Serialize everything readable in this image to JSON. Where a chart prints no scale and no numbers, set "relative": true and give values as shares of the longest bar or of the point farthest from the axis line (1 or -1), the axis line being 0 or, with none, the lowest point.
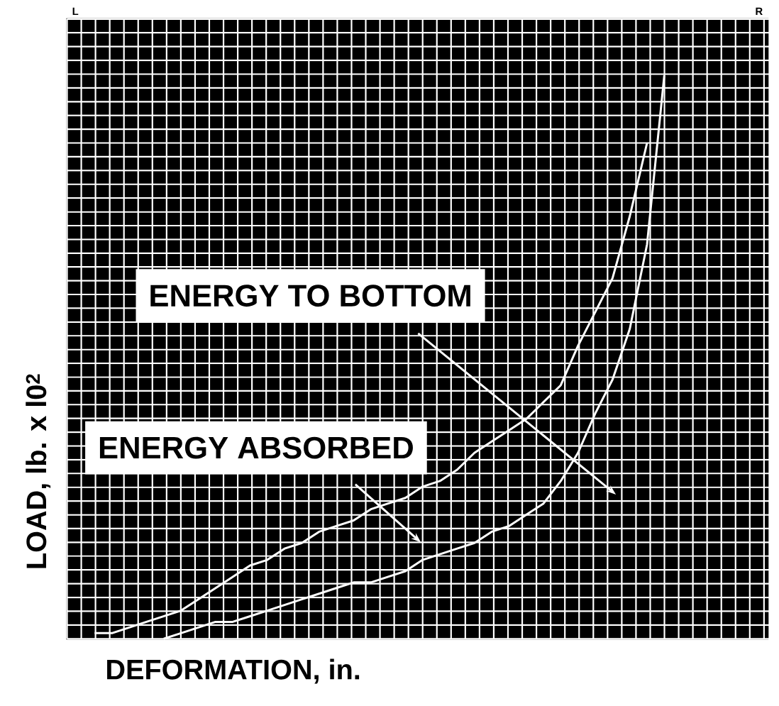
{
  "chart_data": {
    "type": "line",
    "relative": true,
    "xlabel": "DEFORMATION, in.",
    "ylabel": "LOAD, lb. x l0$^{2}$",
    "categories": [
      null,
      null,
      null,
      null,
      null,
      null,
      null,
      null,
      null,
      null,
      null,
      null,
      null,
      null,
      null,
      null,
      null,
      null,
      null,
      null,
      null,
      null,
      null,
      null,
      null,
      null,
      null,
      null,
      null,
      null,
      null,
      null,
      null,
      null,
      null,
      null,
      null,
      null,
      null,
      null,
      null
    ],
    "series": [
      {
        "color": "#ffffff",
        "values": [
          null,
          0.01,
          0.01,
          0.02,
          0.03,
          0.04,
          0.05,
          0.07,
          0.09,
          0.11,
          0.13,
          0.14,
          0.16,
          0.17,
          0.19,
          0.2,
          0.21,
          0.23,
          0.24,
          0.25,
          0.27,
          0.28,
          0.3,
          0.33,
          0.35,
          0.37,
          0.39,
          0.42,
          0.45,
          0.52,
          0.58,
          0.64,
          0.75,
          0.88,
          null,
          null,
          null,
          null,
          null,
          null,
          null
        ]
      },
      {
        "color": "#ffffff",
        "values": [
          null,
          null,
          null,
          null,
          null,
          0.0,
          0.01,
          0.02,
          0.03,
          0.03,
          0.04,
          0.05,
          0.06,
          0.07,
          0.08,
          0.09,
          0.1,
          0.1,
          0.11,
          0.12,
          0.14,
          0.15,
          0.16,
          0.17,
          0.19,
          0.2,
          0.22,
          0.24,
          0.28,
          0.33,
          0.4,
          0.46,
          0.55,
          0.7,
          1.0,
          null,
          null,
          null,
          null,
          null,
          null
        ]
      }
    ],
    "annotations": [
      "ENERGY TO BOTTOM",
      "ENERGY ABSORBED",
      "L",
      "R"
    ],
    "grid": true,
    "marker": "none",
    "line_style": "solid"
  }
}
